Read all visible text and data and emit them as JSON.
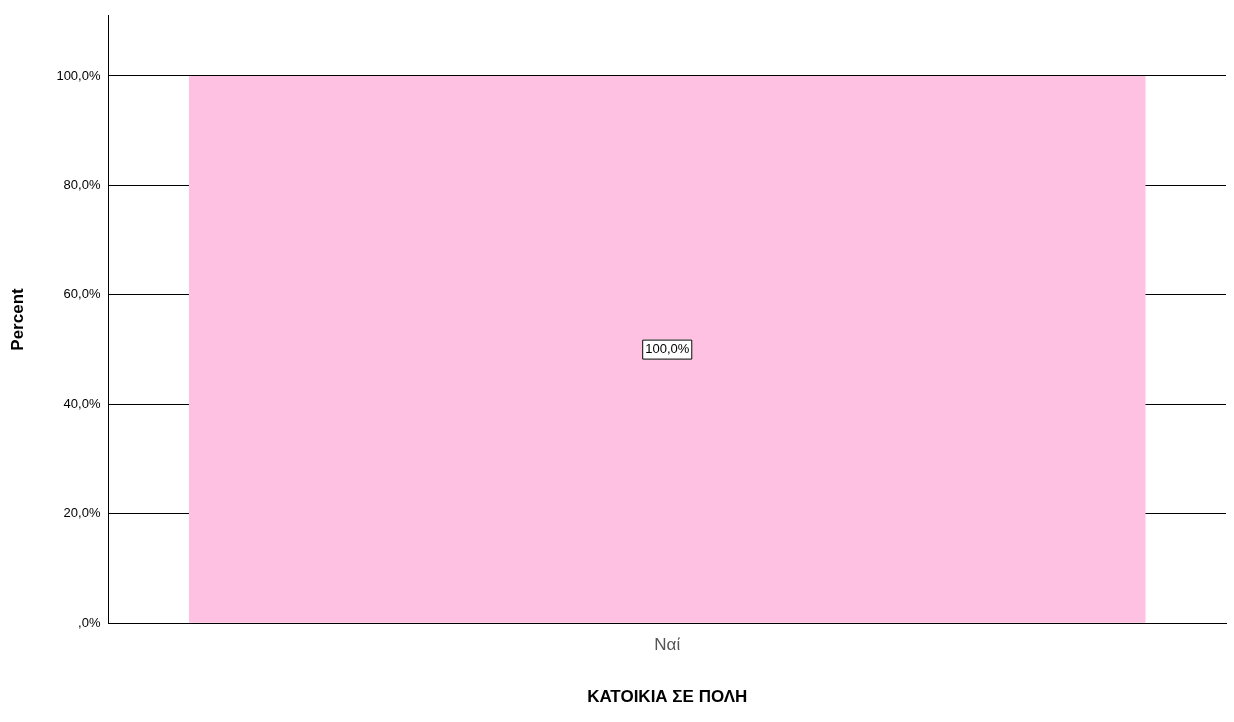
{
  "chart_data": {
    "type": "bar",
    "xlabel": "ΚΑΤΟΙΚΙΑ ΣΕ ΠΟΛΗ",
    "ylabel": "Percent",
    "categories": [
      "Ναί"
    ],
    "values": [
      100
    ],
    "color": "#fec1e1",
    "value_labels": [
      "100,0%"
    ],
    "ylim": [
      0,
      111
    ],
    "yticks": [
      {
        "value": 0,
        "label": ",0%"
      },
      {
        "value": 20,
        "label": "20,0%"
      },
      {
        "value": 40,
        "label": "40,0%"
      },
      {
        "value": 60,
        "label": "60,0%"
      },
      {
        "value": 80,
        "label": "80,0%"
      },
      {
        "value": 100,
        "label": "100,0%"
      }
    ],
    "grid": "y"
  }
}
